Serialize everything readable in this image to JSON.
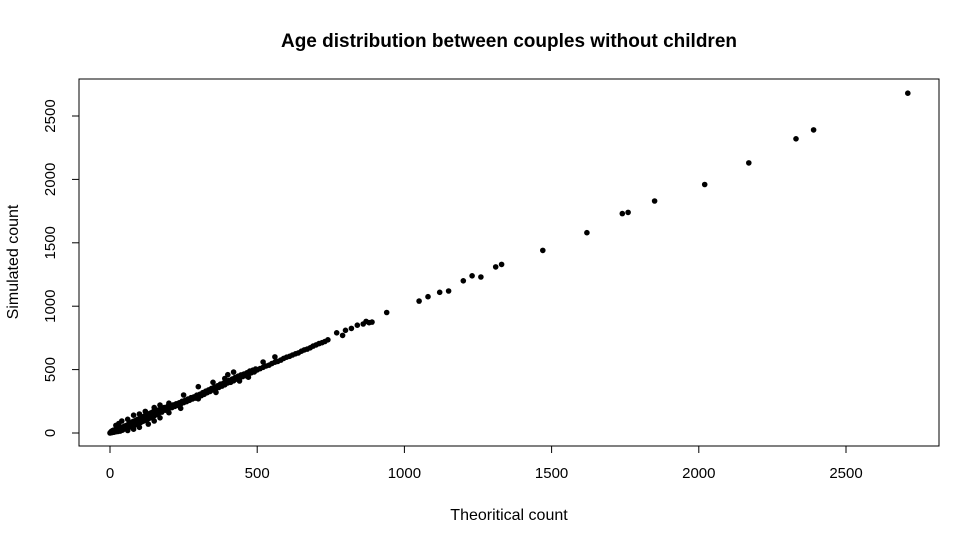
{
  "chart_data": {
    "type": "scatter",
    "title": "Age distribution between couples without children",
    "xlabel": "Theoritical count",
    "ylabel": "Simulated count",
    "xlim": [
      -100,
      2800
    ],
    "ylim": [
      -100,
      2800
    ],
    "xticks": [
      0,
      500,
      1000,
      1500,
      2000,
      2500
    ],
    "yticks": [
      0,
      500,
      1000,
      1500,
      2000,
      2500
    ],
    "xtick_labels": [
      "0",
      "500",
      "1000",
      "1500",
      "2000",
      "2500"
    ],
    "ytick_labels": [
      "0",
      "500",
      "1000",
      "1500",
      "2000",
      "2500"
    ],
    "grid": false,
    "legend": "none",
    "point_color": "#000000",
    "points": [
      [
        0,
        0
      ],
      [
        2,
        5
      ],
      [
        4,
        12
      ],
      [
        6,
        3
      ],
      [
        8,
        18
      ],
      [
        10,
        8
      ],
      [
        12,
        22
      ],
      [
        14,
        6
      ],
      [
        16,
        14
      ],
      [
        18,
        25
      ],
      [
        20,
        10
      ],
      [
        22,
        30
      ],
      [
        24,
        18
      ],
      [
        26,
        12
      ],
      [
        28,
        35
      ],
      [
        30,
        20
      ],
      [
        32,
        28
      ],
      [
        34,
        15
      ],
      [
        36,
        42
      ],
      [
        38,
        26
      ],
      [
        40,
        35
      ],
      [
        42,
        22
      ],
      [
        44,
        48
      ],
      [
        46,
        30
      ],
      [
        48,
        40
      ],
      [
        50,
        55
      ],
      [
        52,
        34
      ],
      [
        54,
        45
      ],
      [
        56,
        60
      ],
      [
        58,
        38
      ],
      [
        60,
        50
      ],
      [
        62,
        68
      ],
      [
        64,
        44
      ],
      [
        66,
        72
      ],
      [
        68,
        55
      ],
      [
        70,
        80
      ],
      [
        72,
        48
      ],
      [
        74,
        65
      ],
      [
        76,
        88
      ],
      [
        78,
        58
      ],
      [
        80,
        70
      ],
      [
        82,
        95
      ],
      [
        84,
        62
      ],
      [
        86,
        78
      ],
      [
        88,
        100
      ],
      [
        90,
        70
      ],
      [
        92,
        85
      ],
      [
        94,
        108
      ],
      [
        96,
        75
      ],
      [
        98,
        90
      ],
      [
        100,
        110
      ],
      [
        102,
        80
      ],
      [
        104,
        96
      ],
      [
        106,
        120
      ],
      [
        108,
        88
      ],
      [
        110,
        105
      ],
      [
        112,
        128
      ],
      [
        114,
        95
      ],
      [
        116,
        112
      ],
      [
        118,
        135
      ],
      [
        120,
        100
      ],
      [
        122,
        118
      ],
      [
        124,
        140
      ],
      [
        126,
        108
      ],
      [
        128,
        125
      ],
      [
        130,
        148
      ],
      [
        132,
        115
      ],
      [
        134,
        130
      ],
      [
        136,
        155
      ],
      [
        138,
        120
      ],
      [
        140,
        140
      ],
      [
        142,
        162
      ],
      [
        144,
        128
      ],
      [
        146,
        148
      ],
      [
        148,
        170
      ],
      [
        150,
        135
      ],
      [
        152,
        155
      ],
      [
        154,
        178
      ],
      [
        156,
        145
      ],
      [
        158,
        160
      ],
      [
        160,
        180
      ],
      [
        164,
        152
      ],
      [
        168,
        170
      ],
      [
        172,
        188
      ],
      [
        176,
        165
      ],
      [
        180,
        185
      ],
      [
        184,
        200
      ],
      [
        188,
        180
      ],
      [
        192,
        195
      ],
      [
        196,
        210
      ],
      [
        200,
        195
      ],
      [
        205,
        215
      ],
      [
        210,
        200
      ],
      [
        215,
        222
      ],
      [
        220,
        210
      ],
      [
        225,
        230
      ],
      [
        230,
        218
      ],
      [
        235,
        238
      ],
      [
        240,
        228
      ],
      [
        245,
        250
      ],
      [
        250,
        240
      ],
      [
        255,
        258
      ],
      [
        260,
        248
      ],
      [
        265,
        268
      ],
      [
        270,
        258
      ],
      [
        275,
        278
      ],
      [
        280,
        268
      ],
      [
        285,
        285
      ],
      [
        290,
        275
      ],
      [
        295,
        298
      ],
      [
        300,
        290
      ],
      [
        305,
        305
      ],
      [
        310,
        295
      ],
      [
        315,
        318
      ],
      [
        320,
        305
      ],
      [
        325,
        330
      ],
      [
        330,
        318
      ],
      [
        335,
        340
      ],
      [
        340,
        328
      ],
      [
        345,
        352
      ],
      [
        350,
        340
      ],
      [
        355,
        362
      ],
      [
        360,
        352
      ],
      [
        365,
        372
      ],
      [
        370,
        360
      ],
      [
        375,
        385
      ],
      [
        380,
        370
      ],
      [
        385,
        392
      ],
      [
        390,
        380
      ],
      [
        395,
        405
      ],
      [
        400,
        395
      ],
      [
        405,
        415
      ],
      [
        410,
        400
      ],
      [
        415,
        425
      ],
      [
        420,
        412
      ],
      [
        425,
        438
      ],
      [
        430,
        425
      ],
      [
        435,
        448
      ],
      [
        440,
        432
      ],
      [
        445,
        458
      ],
      [
        450,
        445
      ],
      [
        455,
        465
      ],
      [
        460,
        452
      ],
      [
        465,
        475
      ],
      [
        470,
        462
      ],
      [
        475,
        488
      ],
      [
        480,
        475
      ],
      [
        485,
        495
      ],
      [
        490,
        482
      ],
      [
        495,
        505
      ],
      [
        500,
        498
      ],
      [
        510,
        508
      ],
      [
        520,
        518
      ],
      [
        530,
        528
      ],
      [
        540,
        535
      ],
      [
        550,
        548
      ],
      [
        560,
        558
      ],
      [
        570,
        565
      ],
      [
        580,
        575
      ],
      [
        590,
        588
      ],
      [
        600,
        598
      ],
      [
        610,
        605
      ],
      [
        620,
        615
      ],
      [
        630,
        625
      ],
      [
        640,
        632
      ],
      [
        650,
        645
      ],
      [
        660,
        655
      ],
      [
        670,
        662
      ],
      [
        680,
        672
      ],
      [
        690,
        685
      ],
      [
        700,
        695
      ],
      [
        710,
        705
      ],
      [
        720,
        712
      ],
      [
        730,
        722
      ],
      [
        740,
        735
      ],
      [
        20,
        60
      ],
      [
        30,
        75
      ],
      [
        40,
        95
      ],
      [
        60,
        108
      ],
      [
        80,
        140
      ],
      [
        100,
        150
      ],
      [
        120,
        170
      ],
      [
        150,
        200
      ],
      [
        170,
        220
      ],
      [
        200,
        235
      ],
      [
        60,
        20
      ],
      [
        80,
        30
      ],
      [
        100,
        45
      ],
      [
        130,
        70
      ],
      [
        150,
        95
      ],
      [
        170,
        120
      ],
      [
        200,
        160
      ],
      [
        240,
        195
      ],
      [
        300,
        270
      ],
      [
        360,
        320
      ],
      [
        250,
        300
      ],
      [
        300,
        365
      ],
      [
        350,
        400
      ],
      [
        400,
        460
      ],
      [
        420,
        480
      ],
      [
        390,
        430
      ],
      [
        440,
        410
      ],
      [
        470,
        440
      ],
      [
        520,
        560
      ],
      [
        560,
        600
      ],
      [
        770,
        790
      ],
      [
        790,
        770
      ],
      [
        800,
        810
      ],
      [
        820,
        825
      ],
      [
        840,
        850
      ],
      [
        860,
        860
      ],
      [
        870,
        880
      ],
      [
        880,
        870
      ],
      [
        890,
        875
      ],
      [
        940,
        950
      ],
      [
        1050,
        1040
      ],
      [
        1080,
        1075
      ],
      [
        1120,
        1110
      ],
      [
        1150,
        1120
      ],
      [
        1200,
        1200
      ],
      [
        1230,
        1240
      ],
      [
        1260,
        1230
      ],
      [
        1310,
        1310
      ],
      [
        1330,
        1330
      ],
      [
        1470,
        1440
      ],
      [
        1620,
        1580
      ],
      [
        1740,
        1730
      ],
      [
        1760,
        1740
      ],
      [
        1850,
        1830
      ],
      [
        2020,
        1960
      ],
      [
        2170,
        2130
      ],
      [
        2330,
        2320
      ],
      [
        2390,
        2390
      ],
      [
        2710,
        2680
      ]
    ]
  }
}
